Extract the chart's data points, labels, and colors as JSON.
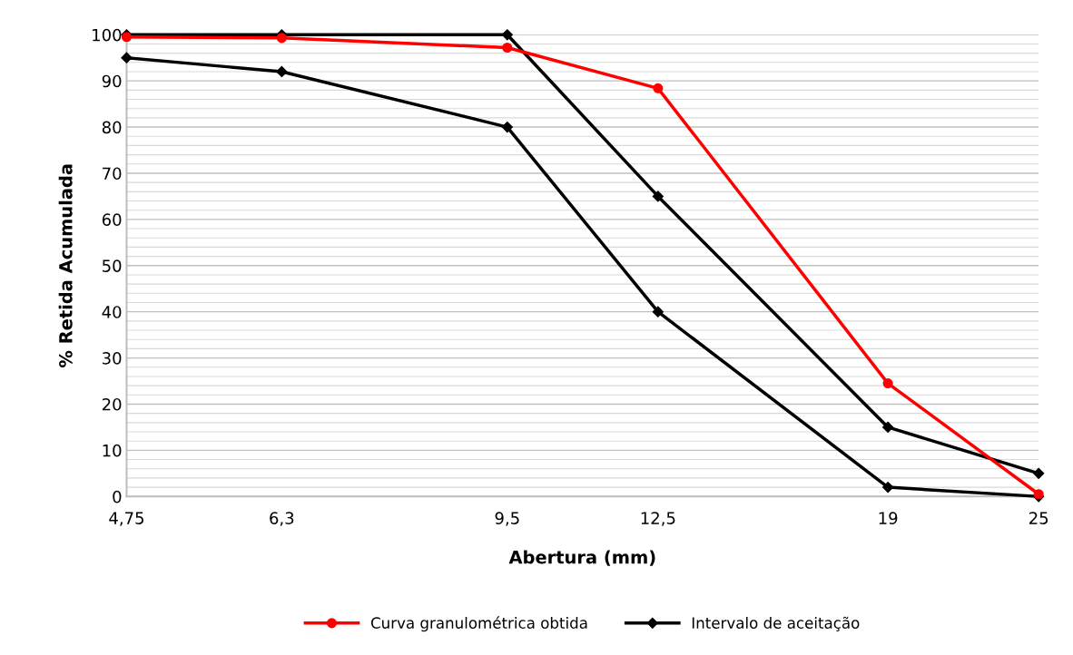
{
  "chart_data": {
    "type": "line",
    "xlabel": "Abertura (mm)",
    "ylabel": "% Retida Acumulada",
    "log": "x",
    "x": [
      4.75,
      6.3,
      9.5,
      12.5,
      19,
      25
    ],
    "xlim": [
      4.75,
      25
    ],
    "xticks": [
      {
        "value": 4.75,
        "label": "4,75"
      },
      {
        "value": 6.3,
        "label": "6,3"
      },
      {
        "value": 9.5,
        "label": "9,5"
      },
      {
        "value": 12.5,
        "label": "12,5"
      },
      {
        "value": 19,
        "label": "19"
      },
      {
        "value": 25,
        "label": "25"
      }
    ],
    "ylim": [
      0,
      100
    ],
    "yticks": [
      0,
      10,
      20,
      30,
      40,
      50,
      60,
      70,
      80,
      90,
      100
    ],
    "grid": "y",
    "legend": "bottom",
    "series": [
      {
        "name": "Curva granulométrica obtida",
        "color": "#ff0000",
        "marker": "circle",
        "values": [
          99.5,
          99.3,
          97.2,
          88.4,
          24.5,
          0.5
        ]
      },
      {
        "name": "Intervalo de aceitação",
        "color": "#000000",
        "marker": "diamond",
        "values": [
          100,
          100,
          100,
          65,
          15,
          5
        ]
      },
      {
        "color": "#000000",
        "marker": "diamond",
        "values": [
          95,
          92,
          80,
          40,
          2,
          0
        ]
      }
    ]
  }
}
